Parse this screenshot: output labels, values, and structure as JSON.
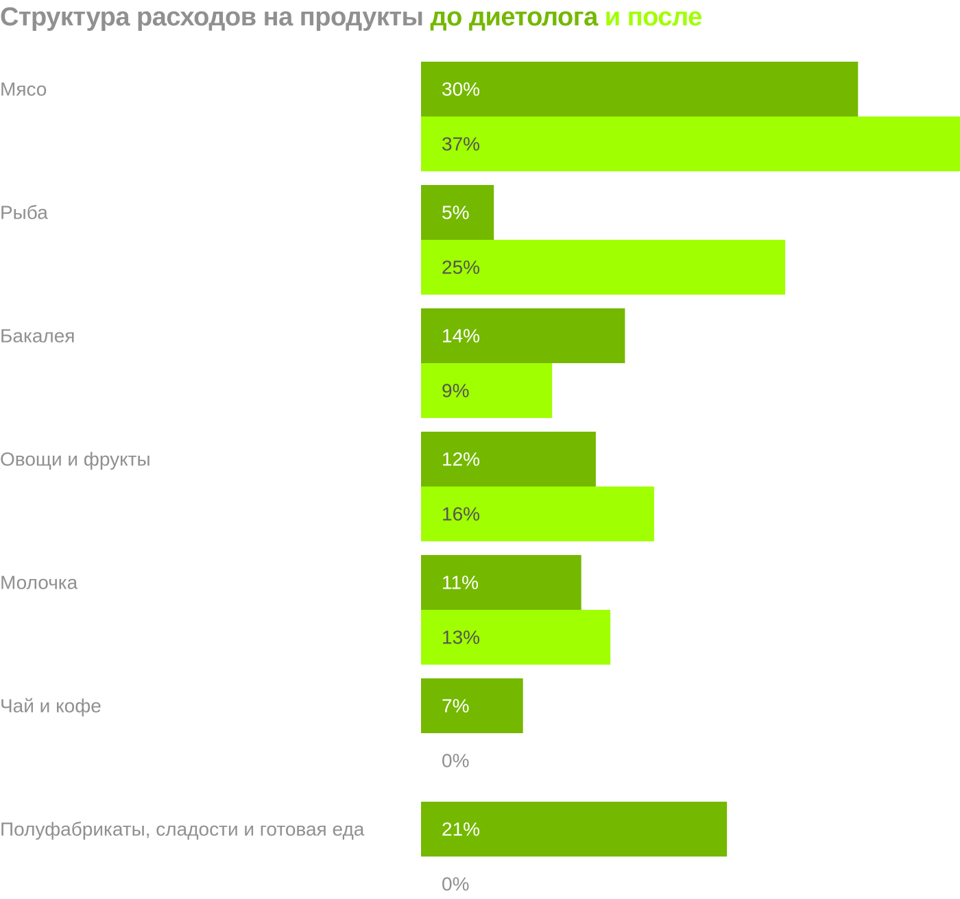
{
  "title": {
    "main": "Структура расходов на продукты ",
    "before": "до диетолога",
    "after": " и после"
  },
  "colors": {
    "title_gray": "#909090",
    "before": "#74b800",
    "after": "#a0ff00",
    "label_gray": "#909090",
    "label_on_before": "#ffffff",
    "label_on_after": "#555555"
  },
  "chart_data": {
    "type": "bar",
    "orientation": "horizontal",
    "title": "Структура расходов на продукты до диетолога и после",
    "categories": [
      "Мясо",
      "Рыба",
      "Бакалея",
      "Овощи и фрукты",
      "Молочка",
      "Чай и кофе",
      "Полуфабрикаты, сладости и готовая еда"
    ],
    "series": [
      {
        "name": "до диетолога",
        "values": [
          30,
          5,
          14,
          12,
          11,
          7,
          21
        ],
        "labels": [
          "30%",
          "5%",
          "14%",
          "12%",
          "11%",
          "7%",
          "21%"
        ]
      },
      {
        "name": "после",
        "values": [
          37,
          25,
          9,
          16,
          13,
          0,
          0
        ],
        "labels": [
          "37%",
          "25%",
          "9%",
          "16%",
          "13%",
          "0%",
          "0%"
        ]
      }
    ],
    "xlim": [
      0,
      37
    ],
    "grid": false,
    "legend": "in title"
  }
}
